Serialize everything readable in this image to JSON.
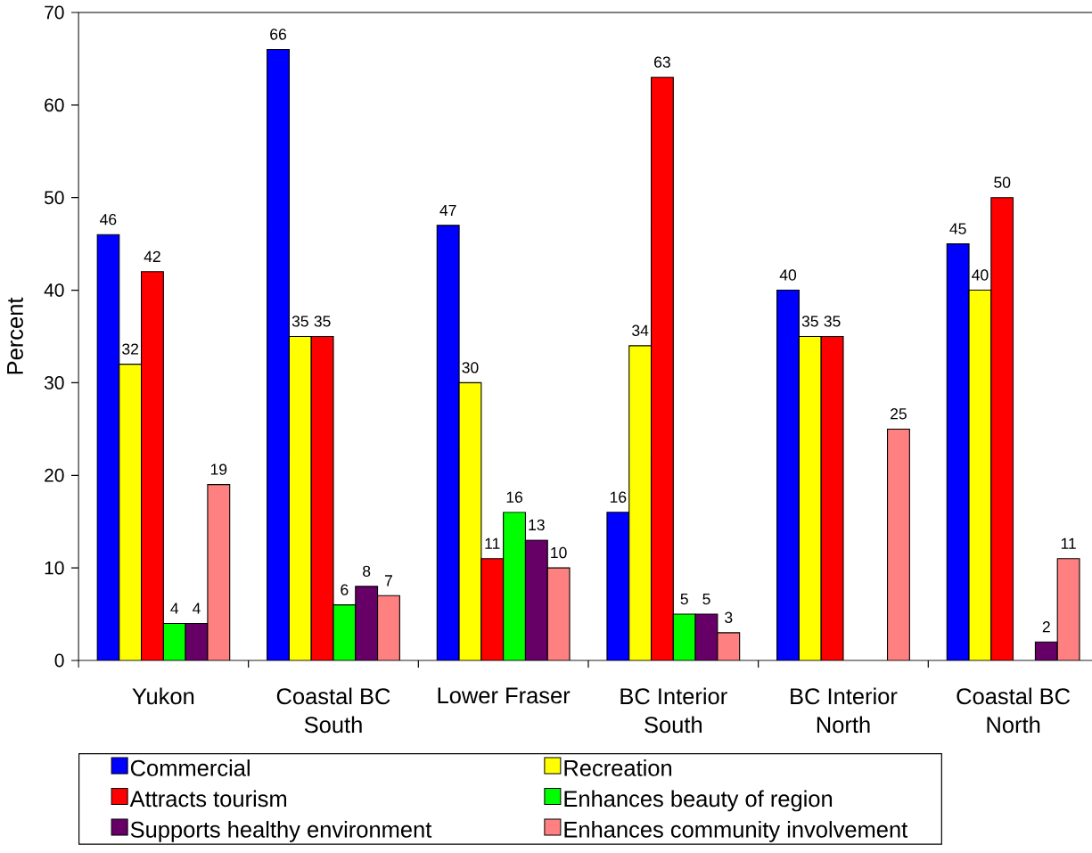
{
  "chart_data": {
    "type": "bar",
    "ylabel": "Percent",
    "categories": [
      "Yukon",
      "Coastal BC South",
      "Lower Fraser",
      "BC Interior South",
      "BC Interior North",
      "Coastal BC North"
    ],
    "series": [
      {
        "name": "Commercial",
        "color": "#0000ff",
        "values": [
          46,
          66,
          47,
          16,
          40,
          45
        ]
      },
      {
        "name": "Recreation",
        "color": "#ffff00",
        "values": [
          32,
          35,
          30,
          34,
          35,
          40
        ]
      },
      {
        "name": "Attracts tourism",
        "color": "#ff0000",
        "values": [
          42,
          35,
          11,
          63,
          35,
          50
        ]
      },
      {
        "name": "Enhances beauty of region",
        "color": "#00ff00",
        "values": [
          4,
          6,
          16,
          5,
          null,
          null
        ]
      },
      {
        "name": "Supports healthy environment",
        "color": "#660066",
        "values": [
          4,
          8,
          13,
          5,
          null,
          2
        ]
      },
      {
        "name": "Enhances community involvement",
        "color": "#ff8080",
        "values": [
          19,
          7,
          10,
          3,
          25,
          11
        ]
      }
    ],
    "ylim": [
      0,
      70
    ],
    "yticks": [
      0,
      10,
      20,
      30,
      40,
      50,
      60,
      70
    ],
    "data_labels": true,
    "legend": "bottom"
  }
}
